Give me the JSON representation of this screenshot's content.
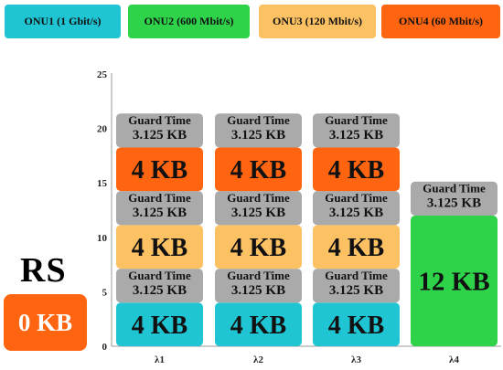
{
  "legend": [
    {
      "label": "ONU1 (1 Gbit/s)",
      "color": "#1fc5d3"
    },
    {
      "label": "ONU2 (600 Mbit/s)",
      "color": "#2ed34a"
    },
    {
      "label": "ONU3 (120 Mbit/s)",
      "color": "#fcc163"
    },
    {
      "label": "ONU4 (60 Mbit/s)",
      "color": "#ff6510"
    }
  ],
  "rs": {
    "label": "RS",
    "value": "0 KB",
    "color": "#ff6510"
  },
  "chart_data": {
    "type": "bar",
    "stacked": true,
    "categories": [
      "λ1",
      "λ2",
      "λ3",
      "λ4"
    ],
    "ylim": [
      0,
      25
    ],
    "yticks": [
      0,
      5,
      10,
      15,
      20,
      25
    ],
    "grid": false,
    "guard_color": "#aaaaaa",
    "columns": [
      {
        "category": "λ1",
        "segments": [
          {
            "kind": "data",
            "series": "ONU1 (1 Gbit/s)",
            "label": "4 KB",
            "value": 4,
            "color": "#1fc5d3"
          },
          {
            "kind": "guard",
            "title": "Guard Time",
            "label": "3.125 KB",
            "value": 3.125
          },
          {
            "kind": "data",
            "series": "ONU3 (120 Mbit/s)",
            "label": "4 KB",
            "value": 4,
            "color": "#fcc163"
          },
          {
            "kind": "guard",
            "title": "Guard Time",
            "label": "3.125 KB",
            "value": 3.125
          },
          {
            "kind": "data",
            "series": "ONU4 (60 Mbit/s)",
            "label": "4 KB",
            "value": 4,
            "color": "#ff6510"
          },
          {
            "kind": "guard",
            "title": "Guard Time",
            "label": "3.125 KB",
            "value": 3.125
          }
        ]
      },
      {
        "category": "λ2",
        "segments": [
          {
            "kind": "data",
            "series": "ONU1 (1 Gbit/s)",
            "label": "4 KB",
            "value": 4,
            "color": "#1fc5d3"
          },
          {
            "kind": "guard",
            "title": "Guard Time",
            "label": "3.125 KB",
            "value": 3.125
          },
          {
            "kind": "data",
            "series": "ONU3 (120 Mbit/s)",
            "label": "4 KB",
            "value": 4,
            "color": "#fcc163"
          },
          {
            "kind": "guard",
            "title": "Guard Time",
            "label": "3.125 KB",
            "value": 3.125
          },
          {
            "kind": "data",
            "series": "ONU4 (60 Mbit/s)",
            "label": "4 KB",
            "value": 4,
            "color": "#ff6510"
          },
          {
            "kind": "guard",
            "title": "Guard Time",
            "label": "3.125 KB",
            "value": 3.125
          }
        ]
      },
      {
        "category": "λ3",
        "segments": [
          {
            "kind": "data",
            "series": "ONU1 (1 Gbit/s)",
            "label": "4 KB",
            "value": 4,
            "color": "#1fc5d3"
          },
          {
            "kind": "guard",
            "title": "Guard Time",
            "label": "3.125 KB",
            "value": 3.125
          },
          {
            "kind": "data",
            "series": "ONU3 (120 Mbit/s)",
            "label": "4 KB",
            "value": 4,
            "color": "#fcc163"
          },
          {
            "kind": "guard",
            "title": "Guard Time",
            "label": "3.125 KB",
            "value": 3.125
          },
          {
            "kind": "data",
            "series": "ONU4 (60 Mbit/s)",
            "label": "4 KB",
            "value": 4,
            "color": "#ff6510"
          },
          {
            "kind": "guard",
            "title": "Guard Time",
            "label": "3.125 KB",
            "value": 3.125
          }
        ]
      },
      {
        "category": "λ4",
        "segments": [
          {
            "kind": "data",
            "series": "ONU2 (600 Mbit/s)",
            "label": "12 KB",
            "value": 12,
            "color": "#2ed34a"
          },
          {
            "kind": "guard",
            "title": "Guard Time",
            "label": "3.125 KB",
            "value": 3.125
          }
        ]
      }
    ]
  }
}
